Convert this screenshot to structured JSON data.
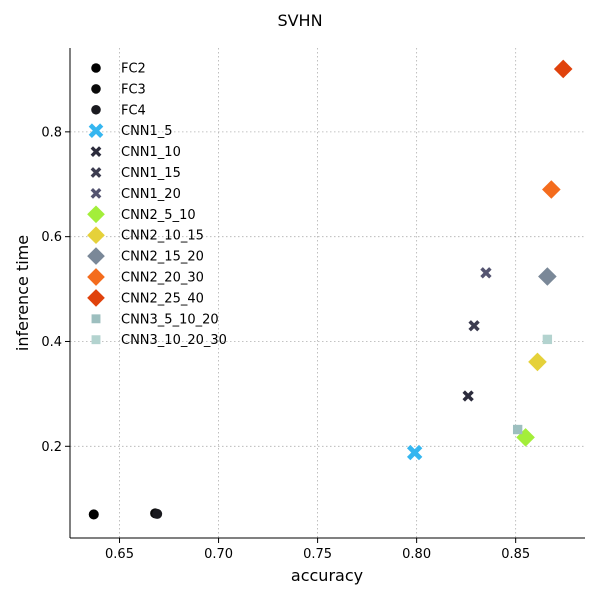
{
  "chart_data": {
    "type": "scatter",
    "title": "SVHN",
    "xlabel": "accuracy",
    "ylabel": "inference time",
    "xlim": [
      0.625,
      0.885
    ],
    "ylim": [
      0.025,
      0.96
    ],
    "xticks": [
      {
        "value": 0.65,
        "label": "0.65"
      },
      {
        "value": 0.7,
        "label": "0.70"
      },
      {
        "value": 0.75,
        "label": "0.75"
      },
      {
        "value": 0.8,
        "label": "0.80"
      },
      {
        "value": 0.85,
        "label": "0.85"
      }
    ],
    "yticks": [
      {
        "value": 0.2,
        "label": "0.2"
      },
      {
        "value": 0.4,
        "label": "0.4"
      },
      {
        "value": 0.6,
        "label": "0.6"
      },
      {
        "value": 0.8,
        "label": "0.8"
      }
    ],
    "grid": true,
    "legend_position": "top-left",
    "series": [
      {
        "name": "FC2",
        "marker": "circle",
        "color": "#000000",
        "x": 0.637,
        "y": 0.07
      },
      {
        "name": "FC3",
        "marker": "circle",
        "color": "#0a0a0a",
        "x": 0.668,
        "y": 0.072
      },
      {
        "name": "FC4",
        "marker": "circle",
        "color": "#1a1a1f",
        "x": 0.669,
        "y": 0.071
      },
      {
        "name": "CNN1_5",
        "marker": "x",
        "color": "#35b6f0",
        "x": 0.799,
        "y": 0.188
      },
      {
        "name": "CNN1_10",
        "marker": "x",
        "color": "#2c2c3c",
        "x": 0.826,
        "y": 0.296
      },
      {
        "name": "CNN1_15",
        "marker": "x",
        "color": "#3c3c50",
        "x": 0.829,
        "y": 0.43
      },
      {
        "name": "CNN1_20",
        "marker": "x",
        "color": "#545470",
        "x": 0.835,
        "y": 0.531
      },
      {
        "name": "CNN2_5_10",
        "marker": "diamond",
        "color": "#a3ee3a",
        "x": 0.855,
        "y": 0.217
      },
      {
        "name": "CNN2_10_15",
        "marker": "diamond",
        "color": "#e5d13a",
        "x": 0.861,
        "y": 0.361
      },
      {
        "name": "CNN2_15_20",
        "marker": "diamond",
        "color": "#7a8898",
        "x": 0.866,
        "y": 0.524
      },
      {
        "name": "CNN2_20_30",
        "marker": "diamond",
        "color": "#f46c1d",
        "x": 0.868,
        "y": 0.69
      },
      {
        "name": "CNN2_25_40",
        "marker": "diamond",
        "color": "#e0420c",
        "x": 0.874,
        "y": 0.92
      },
      {
        "name": "CNN3_5_10_20",
        "marker": "square",
        "color": "#9dbfbf",
        "x": 0.851,
        "y": 0.232
      },
      {
        "name": "CNN3_10_20_30",
        "marker": "square",
        "color": "#b3d3cf",
        "x": 0.866,
        "y": 0.404
      }
    ]
  }
}
